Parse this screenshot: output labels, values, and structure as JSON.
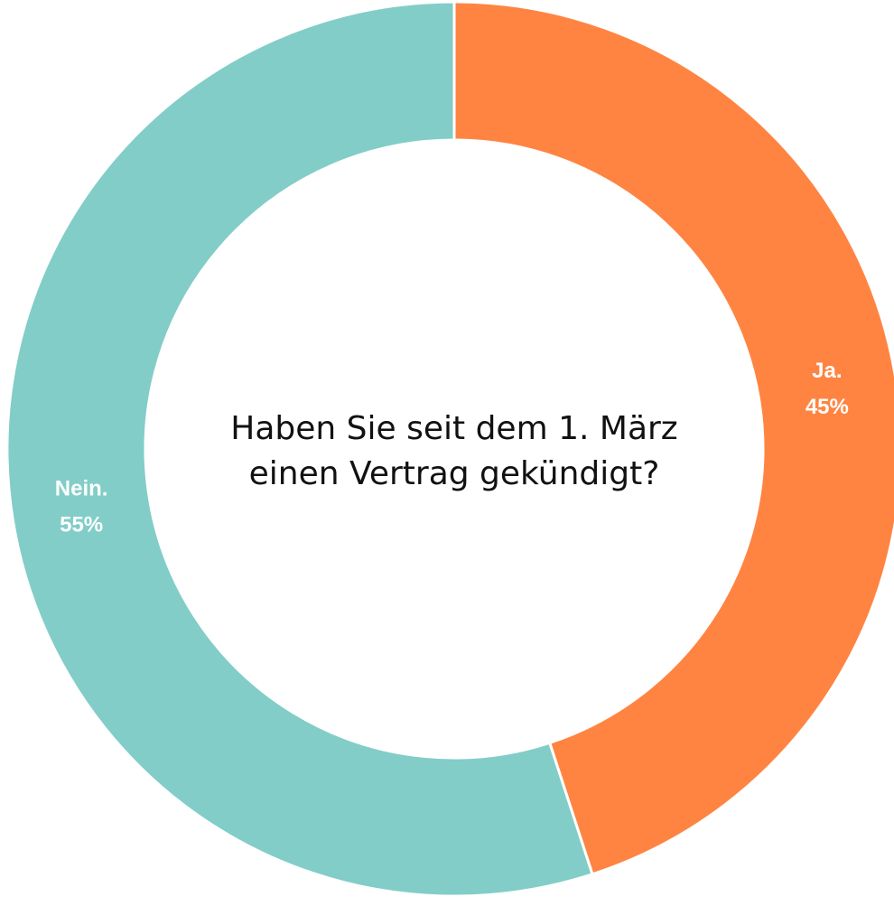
{
  "chart_data": {
    "type": "donut",
    "title": "Haben Sie seit dem 1. März einen Vertrag gekündigt?",
    "categories": [
      "Ja.",
      "Nein."
    ],
    "values": [
      45,
      55
    ],
    "value_labels": [
      "45%",
      "55%"
    ],
    "colors": [
      "#ff8442",
      "#82cdc8"
    ]
  }
}
